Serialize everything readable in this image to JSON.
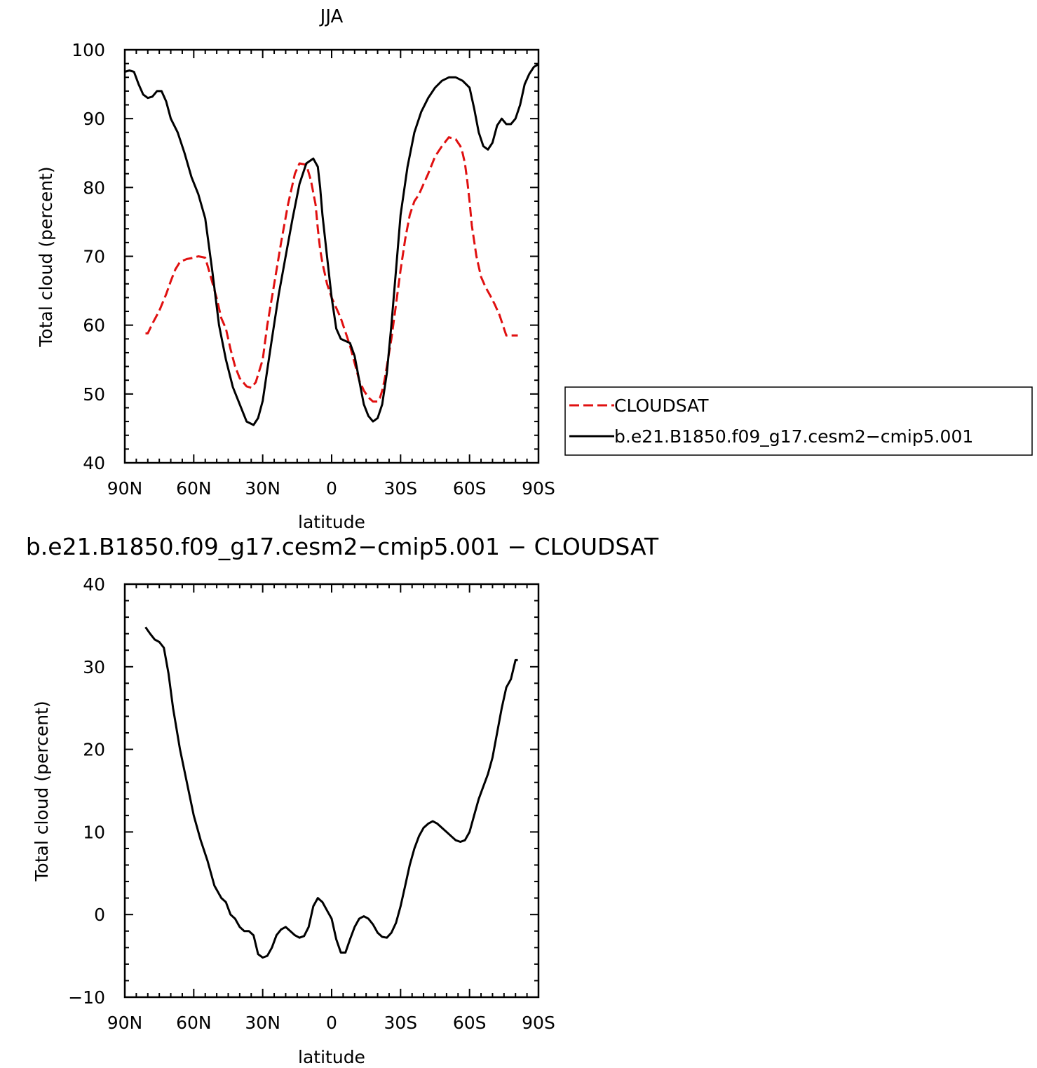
{
  "chart_data": [
    {
      "type": "line",
      "title": "JJA",
      "xlabel": "latitude",
      "ylabel": "Total cloud (percent)",
      "xlim": [
        90,
        -90
      ],
      "ylim": [
        40,
        100
      ],
      "x_ticks": [
        90,
        60,
        30,
        0,
        -30,
        -60,
        -90
      ],
      "x_tick_labels": [
        "90N",
        "60N",
        "30N",
        "0",
        "30S",
        "60S",
        "90S"
      ],
      "y_ticks": [
        40,
        50,
        60,
        70,
        80,
        90,
        100
      ],
      "y_tick_labels": [
        "40",
        "50",
        "60",
        "70",
        "80",
        "90",
        "100"
      ],
      "legend_position": "right",
      "series": [
        {
          "name": "CLOUDSAT",
          "color": "#e01010",
          "dash": true,
          "x": [
            81,
            80,
            78,
            75,
            72,
            70,
            68,
            66,
            63,
            60,
            58,
            55,
            53,
            50,
            48,
            46,
            44,
            42,
            40,
            37,
            35,
            33,
            30,
            28,
            25,
            22,
            19,
            16,
            14,
            11,
            9,
            7,
            6,
            5,
            4,
            3,
            2,
            0,
            -2,
            -4,
            -6,
            -8,
            -10,
            -12,
            -14,
            -16,
            -18,
            -20,
            -21,
            -22,
            -23,
            -24,
            -26,
            -28,
            -30,
            -32,
            -34,
            -36,
            -38,
            -40,
            -42,
            -45,
            -48,
            -51,
            -54,
            -56,
            -57,
            -58,
            -59,
            -60,
            -61,
            -63,
            -65,
            -67,
            -69,
            -71,
            -73,
            -76,
            -78,
            -80,
            -81
          ],
          "values": [
            58.8,
            58.8,
            60.2,
            62.1,
            64.5,
            66.4,
            68.1,
            69.2,
            69.6,
            69.8,
            70.0,
            69.8,
            67.5,
            63.9,
            61.0,
            59.5,
            56.5,
            54.0,
            52.3,
            51.1,
            50.9,
            51.7,
            55.0,
            60.0,
            66.0,
            72.0,
            77.5,
            82.0,
            83.5,
            83.3,
            81.0,
            77.5,
            74.0,
            71.0,
            69.0,
            67.5,
            66.0,
            64.0,
            62.5,
            61.0,
            59.0,
            57.0,
            54.5,
            52.0,
            50.5,
            49.5,
            48.9,
            48.9,
            49.4,
            50.5,
            52.0,
            54.0,
            58.0,
            63.0,
            68.0,
            72.5,
            76.0,
            78.0,
            79.0,
            80.5,
            82.0,
            84.5,
            86.0,
            87.3,
            87.0,
            86.0,
            85.0,
            83.5,
            81.0,
            78.0,
            74.5,
            70.0,
            67.0,
            65.5,
            64.3,
            63.0,
            61.5,
            58.5,
            58.5,
            58.5,
            58.5
          ]
        },
        {
          "name": "b.e21.B1850.f09_g17.cesm2−cmip5.001",
          "color": "#000000",
          "dash": false,
          "x": [
            90,
            88,
            86,
            84,
            82,
            80,
            78,
            76,
            74,
            72,
            70,
            67,
            64,
            61,
            58,
            55,
            52,
            49,
            46,
            43,
            40,
            37,
            34,
            32,
            30,
            28,
            26,
            23,
            20,
            17,
            14,
            11,
            8,
            6,
            5,
            4,
            2,
            0,
            -2,
            -4,
            -6,
            -8,
            -10,
            -12,
            -14,
            -16,
            -18,
            -20,
            -22,
            -24,
            -26,
            -28,
            -30,
            -33,
            -36,
            -39,
            -42,
            -45,
            -48,
            -51,
            -54,
            -57,
            -60,
            -62,
            -64,
            -66,
            -68,
            -70,
            -72,
            -74,
            -76,
            -78,
            -80,
            -82,
            -84,
            -86,
            -88,
            -90
          ],
          "values": [
            96.8,
            97.0,
            96.8,
            95.0,
            93.5,
            93.0,
            93.2,
            94.0,
            94.0,
            92.5,
            90.0,
            88.0,
            85.0,
            81.5,
            79.0,
            75.5,
            68.0,
            60.0,
            55.0,
            51.0,
            48.5,
            46.0,
            45.5,
            46.5,
            49.0,
            53.5,
            58.0,
            64.5,
            70.0,
            75.5,
            80.5,
            83.5,
            84.2,
            83.0,
            80.0,
            76.0,
            70.0,
            64.0,
            59.5,
            58.0,
            57.7,
            57.4,
            55.5,
            52.0,
            48.5,
            46.8,
            46.0,
            46.5,
            48.5,
            53.0,
            60.0,
            68.0,
            76.0,
            83.0,
            88.0,
            91.0,
            93.0,
            94.5,
            95.5,
            96.0,
            96.0,
            95.5,
            94.5,
            91.5,
            88.0,
            86.0,
            85.5,
            86.5,
            89.0,
            90.0,
            89.2,
            89.2,
            90.0,
            92.0,
            95.0,
            96.5,
            97.5,
            97.9
          ]
        }
      ]
    },
    {
      "type": "line",
      "title": "b.e21.B1850.f09_g17.cesm2−cmip5.001 − CLOUDSAT",
      "xlabel": "latitude",
      "ylabel": "Total cloud (percent)",
      "xlim": [
        90,
        -90
      ],
      "ylim": [
        -10,
        40
      ],
      "x_ticks": [
        90,
        60,
        30,
        0,
        -30,
        -60,
        -90
      ],
      "x_tick_labels": [
        "90N",
        "60N",
        "30N",
        "0",
        "30S",
        "60S",
        "90S"
      ],
      "y_ticks": [
        -10,
        0,
        10,
        20,
        30,
        40
      ],
      "y_tick_labels": [
        "−10",
        "0",
        "10",
        "20",
        "30",
        "40"
      ],
      "series": [
        {
          "color": "#000000",
          "dash": false,
          "x": [
            81,
            79,
            77,
            75,
            73,
            71,
            69,
            66,
            63,
            60,
            57,
            54,
            51,
            48,
            46,
            44,
            42,
            40,
            38,
            36,
            34,
            32,
            30,
            28,
            26,
            24,
            22,
            20,
            18,
            16,
            14,
            12,
            10,
            8,
            6,
            4,
            2,
            0,
            -2,
            -4,
            -6,
            -8,
            -10,
            -12,
            -14,
            -16,
            -18,
            -20,
            -22,
            -24,
            -26,
            -28,
            -30,
            -32,
            -34,
            -36,
            -38,
            -40,
            -42,
            -44,
            -46,
            -48,
            -50,
            -52,
            -54,
            -56,
            -58,
            -60,
            -62,
            -64,
            -66,
            -68,
            -70,
            -72,
            -74,
            -76,
            -78,
            -80,
            -81
          ],
          "values": [
            34.8,
            34.0,
            33.3,
            33.0,
            32.3,
            29.2,
            25.0,
            20.0,
            16.0,
            12.0,
            9.0,
            6.5,
            3.5,
            2.0,
            1.5,
            0.0,
            -0.5,
            -1.5,
            -2.0,
            -2.0,
            -2.5,
            -4.8,
            -5.2,
            -5.0,
            -4.0,
            -2.5,
            -1.8,
            -1.5,
            -2.0,
            -2.5,
            -2.8,
            -2.6,
            -1.5,
            1.0,
            2.0,
            1.5,
            0.5,
            -0.5,
            -3.0,
            -4.6,
            -4.6,
            -3.0,
            -1.5,
            -0.5,
            -0.2,
            -0.5,
            -1.2,
            -2.2,
            -2.7,
            -2.8,
            -2.2,
            -1.0,
            1.0,
            3.5,
            6.0,
            8.0,
            9.5,
            10.5,
            11.0,
            11.3,
            11.0,
            10.5,
            10.0,
            9.5,
            9.0,
            8.8,
            9.0,
            10.0,
            12.0,
            14.0,
            15.5,
            17.0,
            19.0,
            22.0,
            25.0,
            27.5,
            28.5,
            30.8,
            30.8
          ]
        }
      ]
    }
  ]
}
